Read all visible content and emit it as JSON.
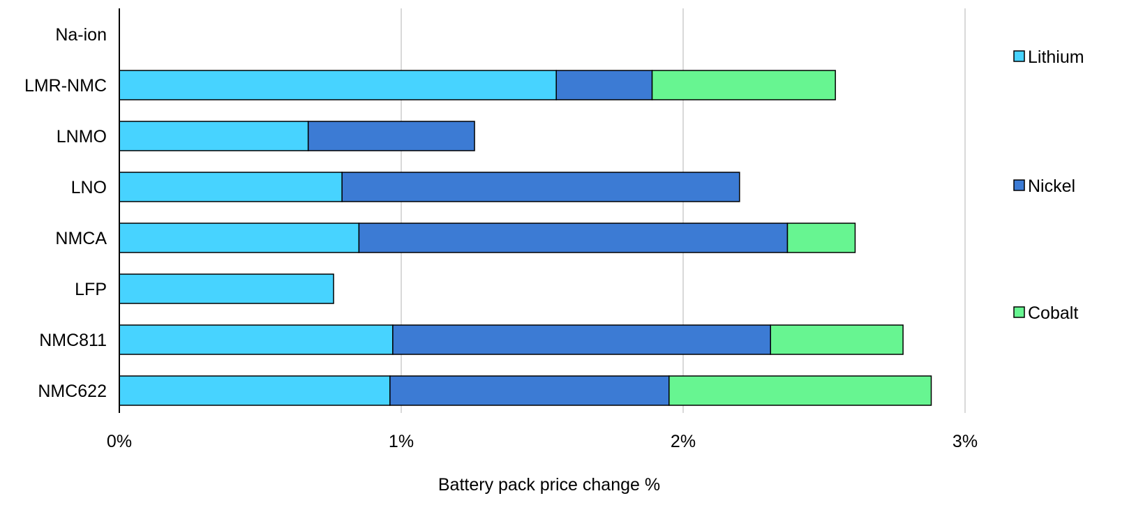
{
  "chart_data": {
    "type": "bar",
    "orientation": "horizontal",
    "stacked": true,
    "title": "",
    "xlabel": "Battery pack price change %",
    "ylabel": "",
    "xlim": [
      0,
      3
    ],
    "x_ticks": [
      0,
      1,
      2,
      3
    ],
    "x_tick_labels": [
      "0%",
      "1%",
      "2%",
      "3%"
    ],
    "grid": "vertical",
    "legend_position": "right",
    "categories": [
      "Na-ion",
      "LMR-NMC",
      "LNMO",
      "LNO",
      "NMCA",
      "LFP",
      "NMC811",
      "NMC622"
    ],
    "series": [
      {
        "name": "Lithium",
        "color": "#47D3FF",
        "values": [
          0,
          1.55,
          0.67,
          0.79,
          0.85,
          0.76,
          0.97,
          0.96
        ]
      },
      {
        "name": "Nickel",
        "color": "#3C7BD4",
        "values": [
          0,
          0.34,
          0.59,
          1.41,
          1.52,
          0,
          1.34,
          0.99
        ]
      },
      {
        "name": "Cobalt",
        "color": "#67F591",
        "values": [
          0,
          0.65,
          0,
          0,
          0.24,
          0,
          0.47,
          0.93
        ]
      }
    ]
  }
}
